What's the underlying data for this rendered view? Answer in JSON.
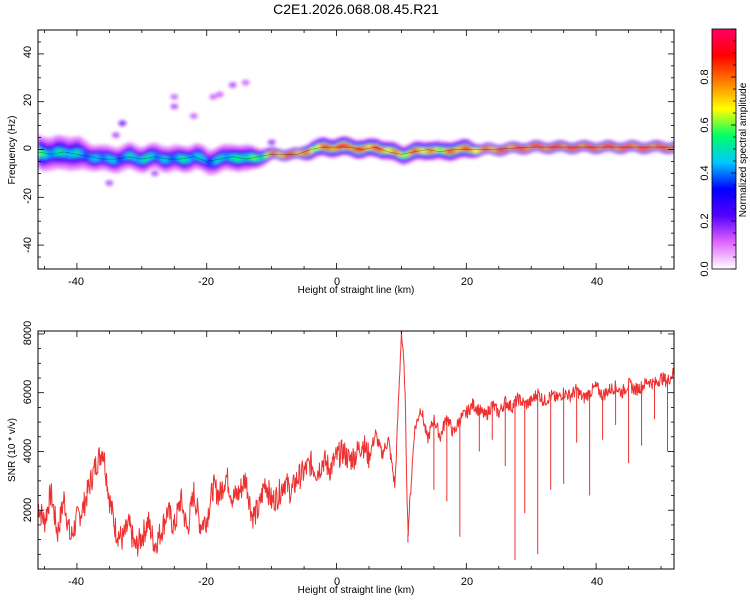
{
  "figure_title": "C2E1.2026.068.08.45.R21",
  "chart_data": [
    {
      "type": "heatmap",
      "title": "C2E1.2026.068.08.45.R21",
      "xlabel": "Height of straight line (km)",
      "ylabel": "Frequency (Hz)",
      "xlim": [
        -46,
        52
      ],
      "ylim": [
        -50,
        50
      ],
      "xticks": [
        -40,
        -20,
        0,
        20,
        40
      ],
      "yticks": [
        -40,
        -20,
        0,
        20,
        40
      ],
      "xtick_labels": [
        "-40",
        "-20",
        "0",
        "20",
        "40"
      ],
      "ytick_labels": [
        "-40",
        "-20",
        "0",
        "20",
        "40"
      ],
      "colorbar": {
        "label": "Normalized spectral amplitude",
        "range": [
          0,
          1
        ],
        "ticks": [
          0.0,
          0.2,
          0.4,
          0.6,
          0.8
        ],
        "tick_labels": [
          "0.0",
          "0.2",
          "0.4",
          "0.6",
          "0.8"
        ],
        "colors": [
          "#ffffff",
          "#e066ff",
          "#5500ff",
          "#0000ff",
          "#00c8ff",
          "#00ff66",
          "#ffff00",
          "#ff8000",
          "#ff0000",
          "#ff0066"
        ]
      },
      "ridge": {
        "x": [
          -46,
          -44,
          -42,
          -40,
          -38,
          -36,
          -34,
          -32,
          -30,
          -28,
          -26,
          -24,
          -22,
          -20,
          -18,
          -16,
          -14,
          -12,
          -10,
          -8,
          -6,
          -4,
          -2,
          0,
          2,
          4,
          6,
          8,
          10,
          12,
          14,
          16,
          18,
          20,
          22,
          24,
          30,
          40,
          50,
          52
        ],
        "frequency": [
          -1,
          -2,
          -1,
          -2,
          -3,
          -4,
          -4,
          -3,
          -4,
          -3,
          -4,
          -4,
          -3,
          -5,
          -4,
          -3,
          -4,
          -3,
          -2,
          -2,
          -2,
          0,
          1,
          1,
          1,
          0,
          1,
          -1,
          -2,
          -1,
          0,
          -1,
          0,
          0,
          0,
          0,
          1,
          1,
          1,
          1
        ],
        "amplitude": [
          0.6,
          0.5,
          0.55,
          0.5,
          0.45,
          0.5,
          0.45,
          0.5,
          0.55,
          0.5,
          0.45,
          0.55,
          0.5,
          0.45,
          0.5,
          0.55,
          0.6,
          0.6,
          0.85,
          0.9,
          0.9,
          0.75,
          0.85,
          0.95,
          0.95,
          0.85,
          0.9,
          0.8,
          0.75,
          0.85,
          0.8,
          0.75,
          0.9,
          0.85,
          0.8,
          0.9,
          0.95,
          0.95,
          0.95,
          0.95
        ],
        "spread": [
          4,
          4,
          4,
          4,
          3,
          3,
          3,
          3,
          3,
          3,
          3,
          3,
          3,
          3,
          3,
          3,
          3,
          2,
          1,
          1,
          1,
          2,
          2,
          2,
          2,
          2,
          2,
          2,
          2,
          2,
          2,
          2,
          2,
          2,
          1,
          1,
          1,
          1,
          1,
          1
        ]
      },
      "scatter_points": [
        {
          "x": -33,
          "y": 11,
          "v": 0.15
        },
        {
          "x": -34,
          "y": 6,
          "v": 0.1
        },
        {
          "x": -25,
          "y": 18,
          "v": 0.1
        },
        {
          "x": -25,
          "y": 22,
          "v": 0.08
        },
        {
          "x": -22,
          "y": 14,
          "v": 0.08
        },
        {
          "x": -19,
          "y": 22,
          "v": 0.08
        },
        {
          "x": -18,
          "y": 23,
          "v": 0.08
        },
        {
          "x": -16,
          "y": 27,
          "v": 0.1
        },
        {
          "x": -14,
          "y": 28,
          "v": 0.08
        },
        {
          "x": -35,
          "y": -14,
          "v": 0.1
        },
        {
          "x": -28,
          "y": -10,
          "v": 0.1
        },
        {
          "x": -10,
          "y": 3,
          "v": 0.12
        }
      ]
    },
    {
      "type": "line",
      "xlabel": "Height of straight line (km)",
      "ylabel": "SNR (10 * v/v)",
      "xlim": [
        -46,
        52
      ],
      "ylim": [
        0,
        8100
      ],
      "xticks": [
        -40,
        -20,
        0,
        20,
        40
      ],
      "yticks": [
        2000,
        4000,
        6000,
        8000
      ],
      "xtick_labels": [
        "-40",
        "-20",
        "0",
        "20",
        "40"
      ],
      "ytick_labels": [
        "2000",
        "4000",
        "6000",
        "8000"
      ],
      "color": "#ee3030",
      "series": [
        {
          "name": "SNR",
          "x": [
            -46,
            -45,
            -44,
            -43,
            -42,
            -41,
            -40,
            -39,
            -38,
            -37,
            -36,
            -35,
            -34,
            -33,
            -32,
            -31,
            -30,
            -29,
            -28,
            -27,
            -26,
            -25,
            -24,
            -23,
            -22,
            -21,
            -20,
            -19,
            -18,
            -17,
            -16,
            -15,
            -14,
            -13,
            -12,
            -11,
            -10,
            -9,
            -8,
            -7,
            -6,
            -5,
            -4,
            -3,
            -2,
            -1,
            0,
            1,
            2,
            3,
            4,
            5,
            6,
            7,
            8,
            9,
            10,
            10.5,
            11,
            12,
            13,
            14,
            15,
            16,
            17,
            18,
            19,
            20,
            21,
            22,
            23,
            24,
            25,
            26,
            27,
            28,
            29,
            30,
            31,
            32,
            33,
            34,
            35,
            36,
            37,
            38,
            39,
            40,
            41,
            42,
            43,
            44,
            45,
            46,
            47,
            48,
            49,
            50,
            51,
            52
          ],
          "values": [
            2200,
            1600,
            2600,
            1200,
            2400,
            1000,
            1700,
            2100,
            2900,
            3600,
            4100,
            2400,
            1300,
            1000,
            1500,
            700,
            1100,
            1600,
            800,
            1300,
            2000,
            1400,
            2400,
            1300,
            2600,
            1500,
            1700,
            2800,
            2500,
            3200,
            2400,
            2600,
            3100,
            1800,
            2000,
            3000,
            2300,
            2500,
            3000,
            2600,
            3100,
            3300,
            3600,
            3300,
            3700,
            3400,
            3800,
            4000,
            3700,
            3900,
            4300,
            3800,
            4600,
            3900,
            4400,
            2800,
            8100,
            6500,
            1200,
            4700,
            5500,
            4400,
            5100,
            4500,
            5200,
            4600,
            5100,
            5300,
            5600,
            5400,
            5200,
            5600,
            5300,
            5700,
            5500,
            5800,
            5600,
            5700,
            6000,
            5700,
            5900,
            5800,
            6000,
            5900,
            6100,
            5800,
            6000,
            6200,
            5900,
            6100,
            6200,
            6000,
            6300,
            6100,
            6200,
            6400,
            6300,
            6500,
            6400,
            6700
          ]
        }
      ],
      "dips": [
        {
          "x": 11,
          "y": 900
        },
        {
          "x": 15,
          "y": 2700
        },
        {
          "x": 17,
          "y": 2300
        },
        {
          "x": 19,
          "y": 1100
        },
        {
          "x": 22,
          "y": 4000
        },
        {
          "x": 24,
          "y": 4400
        },
        {
          "x": 26,
          "y": 3500
        },
        {
          "x": 27.5,
          "y": 300
        },
        {
          "x": 29,
          "y": 1900
        },
        {
          "x": 31,
          "y": 500
        },
        {
          "x": 33,
          "y": 2700
        },
        {
          "x": 35,
          "y": 2900
        },
        {
          "x": 37,
          "y": 4300
        },
        {
          "x": 39,
          "y": 2500
        },
        {
          "x": 41,
          "y": 4400
        },
        {
          "x": 43,
          "y": 4900
        },
        {
          "x": 45,
          "y": 3600
        },
        {
          "x": 47,
          "y": 4200
        },
        {
          "x": 49,
          "y": 5100
        },
        {
          "x": 51,
          "y": 4000
        }
      ]
    }
  ]
}
